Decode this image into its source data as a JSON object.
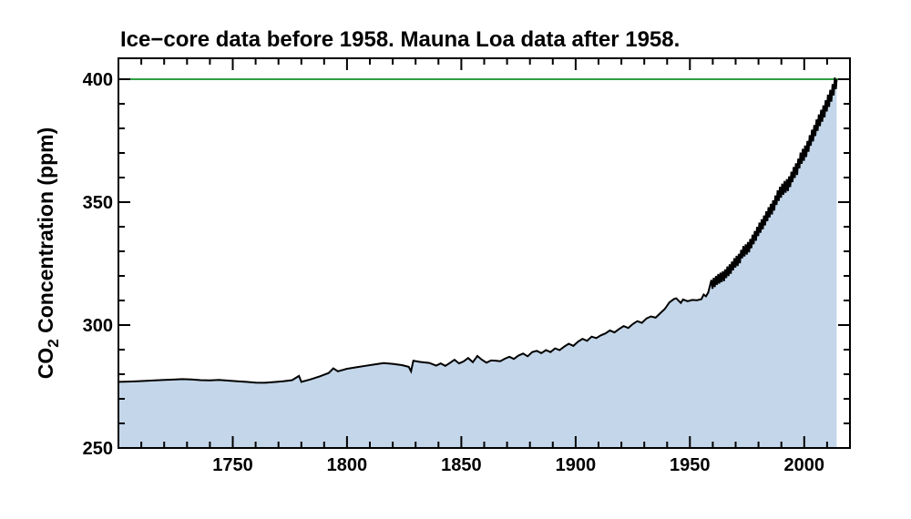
{
  "chart_data": {
    "type": "area",
    "title": "Ice−core data before 1958. Mauna Loa data after 1958.",
    "ylabel": "CO2 Concentration (ppm)",
    "ylabel_parts": {
      "base": "CO",
      "sub": "2",
      "rest": " Concentration (ppm)"
    },
    "xlabel": "",
    "xlim": [
      1700,
      2020
    ],
    "ylim": [
      250,
      408.5
    ],
    "xticks": {
      "major": [
        1750,
        1800,
        1850,
        1900,
        1950,
        2000
      ],
      "minor_step": 10
    },
    "yticks": {
      "major": [
        250,
        300,
        350,
        400
      ],
      "minor_step": 10
    },
    "grid": false,
    "legend": "none",
    "reference_line": {
      "value": 400,
      "color": "#2e9e41"
    },
    "colors": {
      "fill": "#c4d6e9",
      "line": "#000000",
      "frame": "#000000",
      "background": "#ffffff"
    },
    "series": [
      {
        "name": "ice_core",
        "label": "Ice-core data (before 1958)",
        "points": [
          [
            1700,
            276.9
          ],
          [
            1704,
            277.0
          ],
          [
            1708,
            277.1
          ],
          [
            1712,
            277.3
          ],
          [
            1716,
            277.5
          ],
          [
            1720,
            277.7
          ],
          [
            1724,
            277.8
          ],
          [
            1728,
            278.0
          ],
          [
            1732,
            277.9
          ],
          [
            1736,
            277.6
          ],
          [
            1740,
            277.5
          ],
          [
            1744,
            277.7
          ],
          [
            1748,
            277.4
          ],
          [
            1752,
            277.1
          ],
          [
            1756,
            276.9
          ],
          [
            1760,
            276.6
          ],
          [
            1764,
            276.5
          ],
          [
            1768,
            276.8
          ],
          [
            1772,
            277.1
          ],
          [
            1776,
            277.6
          ],
          [
            1779,
            279.3
          ],
          [
            1780,
            276.9
          ],
          [
            1784,
            277.9
          ],
          [
            1788,
            279.1
          ],
          [
            1792,
            280.5
          ],
          [
            1794,
            282.4
          ],
          [
            1796,
            281.2
          ],
          [
            1800,
            282.2
          ],
          [
            1804,
            282.8
          ],
          [
            1808,
            283.4
          ],
          [
            1812,
            284.0
          ],
          [
            1816,
            284.5
          ],
          [
            1820,
            284.2
          ],
          [
            1824,
            283.7
          ],
          [
            1827,
            283.0
          ],
          [
            1828,
            281.2
          ],
          [
            1829,
            285.5
          ],
          [
            1832,
            285.0
          ],
          [
            1836,
            284.6
          ],
          [
            1839,
            283.5
          ],
          [
            1841,
            284.4
          ],
          [
            1843,
            283.4
          ],
          [
            1845,
            284.6
          ],
          [
            1847,
            285.9
          ],
          [
            1849,
            284.4
          ],
          [
            1851,
            285.2
          ],
          [
            1853,
            286.6
          ],
          [
            1855,
            284.9
          ],
          [
            1857,
            287.4
          ],
          [
            1859,
            285.9
          ],
          [
            1861,
            284.7
          ],
          [
            1863,
            285.6
          ],
          [
            1865,
            285.5
          ],
          [
            1867,
            285.3
          ],
          [
            1869,
            286.3
          ],
          [
            1871,
            287.1
          ],
          [
            1873,
            286.2
          ],
          [
            1875,
            287.6
          ],
          [
            1877,
            288.4
          ],
          [
            1879,
            287.3
          ],
          [
            1881,
            289.0
          ],
          [
            1883,
            289.5
          ],
          [
            1885,
            288.6
          ],
          [
            1887,
            289.8
          ],
          [
            1889,
            289.0
          ],
          [
            1891,
            290.5
          ],
          [
            1893,
            289.8
          ],
          [
            1895,
            291.2
          ],
          [
            1897,
            292.4
          ],
          [
            1899,
            291.5
          ],
          [
            1901,
            293.2
          ],
          [
            1903,
            294.4
          ],
          [
            1905,
            293.6
          ],
          [
            1907,
            295.3
          ],
          [
            1909,
            294.7
          ],
          [
            1911,
            295.8
          ],
          [
            1913,
            296.6
          ],
          [
            1915,
            297.8
          ],
          [
            1917,
            297.0
          ],
          [
            1919,
            298.4
          ],
          [
            1921,
            299.6
          ],
          [
            1923,
            298.8
          ],
          [
            1925,
            300.4
          ],
          [
            1927,
            301.6
          ],
          [
            1929,
            300.9
          ],
          [
            1931,
            302.7
          ],
          [
            1933,
            303.5
          ],
          [
            1935,
            303.0
          ],
          [
            1937,
            304.8
          ],
          [
            1939,
            306.5
          ],
          [
            1941,
            309.2
          ],
          [
            1943,
            310.6
          ],
          [
            1944,
            310.9
          ],
          [
            1946,
            309.0
          ],
          [
            1947,
            310.4
          ],
          [
            1949,
            309.7
          ],
          [
            1951,
            310.2
          ],
          [
            1953,
            310.1
          ],
          [
            1955,
            310.5
          ],
          [
            1956,
            312.4
          ],
          [
            1957,
            311.7
          ],
          [
            1958,
            313.2
          ]
        ]
      },
      {
        "name": "mauna_loa",
        "label": "Mauna Loa data (after 1958)",
        "trend": [
          [
            1959,
            316.0
          ],
          [
            1960,
            316.9
          ],
          [
            1961,
            317.6
          ],
          [
            1962,
            318.5
          ],
          [
            1963,
            319.0
          ],
          [
            1964,
            319.6
          ],
          [
            1965,
            320.0
          ],
          [
            1966,
            321.4
          ],
          [
            1967,
            322.2
          ],
          [
            1968,
            323.1
          ],
          [
            1969,
            324.6
          ],
          [
            1970,
            325.7
          ],
          [
            1971,
            326.3
          ],
          [
            1972,
            327.5
          ],
          [
            1973,
            329.7
          ],
          [
            1974,
            330.2
          ],
          [
            1975,
            331.1
          ],
          [
            1976,
            332.0
          ],
          [
            1977,
            333.8
          ],
          [
            1978,
            335.4
          ],
          [
            1979,
            336.8
          ],
          [
            1980,
            338.8
          ],
          [
            1981,
            340.1
          ],
          [
            1982,
            341.5
          ],
          [
            1983,
            343.2
          ],
          [
            1984,
            344.9
          ],
          [
            1985,
            346.4
          ],
          [
            1986,
            347.6
          ],
          [
            1987,
            349.3
          ],
          [
            1988,
            351.7
          ],
          [
            1989,
            353.2
          ],
          [
            1990,
            354.5
          ],
          [
            1991,
            355.7
          ],
          [
            1992,
            356.5
          ],
          [
            1993,
            357.2
          ],
          [
            1994,
            359.0
          ],
          [
            1995,
            361.0
          ],
          [
            1996,
            362.7
          ],
          [
            1997,
            363.9
          ],
          [
            1998,
            366.8
          ],
          [
            1999,
            368.5
          ],
          [
            2000,
            369.7
          ],
          [
            2001,
            371.3
          ],
          [
            2002,
            373.5
          ],
          [
            2003,
            376.0
          ],
          [
            2004,
            377.7
          ],
          [
            2005,
            380.0
          ],
          [
            2006,
            382.1
          ],
          [
            2007,
            384.0
          ],
          [
            2008,
            385.8
          ],
          [
            2009,
            387.6
          ],
          [
            2010,
            390.1
          ],
          [
            2011,
            391.9
          ],
          [
            2012,
            394.1
          ],
          [
            2013,
            396.7
          ]
        ],
        "seasonal_amplitude": [
          2.0,
          3.0
        ],
        "end_year": 2014.2,
        "end_value": 400.0
      }
    ]
  }
}
